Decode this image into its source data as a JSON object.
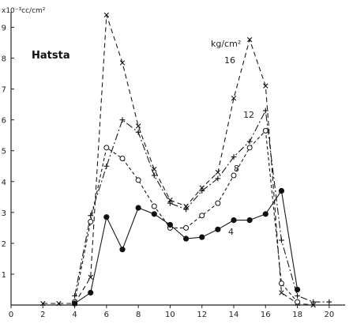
{
  "chart_data": {
    "type": "line",
    "title": "Hatsta",
    "ylabel": "x10⁻³cc/cm²",
    "xlim": [
      0,
      21
    ],
    "ylim": [
      0,
      9.5
    ],
    "x_ticks": [
      0,
      2,
      4,
      6,
      8,
      10,
      12,
      14,
      16,
      18,
      20
    ],
    "y_ticks": [
      1,
      2,
      3,
      4,
      5,
      6,
      7,
      8,
      9
    ],
    "legend_note": "kg/cm²",
    "series": [
      {
        "name": "16",
        "marker": "x",
        "dash": "6 4",
        "x": [
          2,
          3,
          4,
          5,
          6,
          7,
          8,
          9,
          10,
          11,
          12,
          13,
          14,
          15,
          16,
          17,
          18,
          19
        ],
        "y": [
          0.05,
          0.05,
          0.05,
          0.9,
          9.4,
          7.85,
          5.8,
          4.4,
          3.4,
          3.2,
          3.8,
          4.3,
          6.7,
          8.6,
          7.1,
          0.4,
          0.05,
          0.0
        ]
      },
      {
        "name": "12",
        "marker": "plus",
        "dash": "9 3 2 3",
        "x": [
          4,
          5,
          6,
          7,
          8,
          9,
          10,
          11,
          12,
          13,
          14,
          15,
          16,
          17,
          18,
          19,
          20
        ],
        "y": [
          0.3,
          2.9,
          4.5,
          6.0,
          5.6,
          4.2,
          3.3,
          3.1,
          3.7,
          4.1,
          4.8,
          5.3,
          6.3,
          2.1,
          0.3,
          0.1,
          0.1
        ]
      },
      {
        "name": "8",
        "marker": "open-circle",
        "dash": "4 3",
        "x": [
          4,
          5,
          6,
          7,
          8,
          9,
          10,
          11,
          12,
          13,
          14,
          15,
          16,
          17,
          18
        ],
        "y": [
          0.1,
          2.7,
          5.1,
          4.75,
          4.05,
          3.2,
          2.5,
          2.5,
          2.9,
          3.3,
          4.2,
          5.1,
          5.65,
          0.7,
          0.1
        ]
      },
      {
        "name": "4",
        "marker": "filled-circle",
        "dash": "",
        "x": [
          4,
          5,
          6,
          7,
          8,
          9,
          10,
          11,
          12,
          13,
          14,
          15,
          16,
          17,
          18
        ],
        "y": [
          0.05,
          0.4,
          2.85,
          1.8,
          3.15,
          2.95,
          2.6,
          2.15,
          2.2,
          2.45,
          2.75,
          2.75,
          2.95,
          3.7,
          0.5
        ]
      }
    ]
  }
}
